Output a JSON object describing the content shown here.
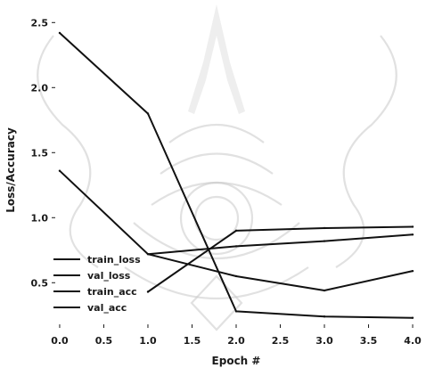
{
  "chart_data": {
    "type": "line",
    "x": [
      0,
      1,
      2,
      3,
      4
    ],
    "xlabel": "Epoch #",
    "ylabel": "Loss/Accuracy",
    "xlim": [
      -0.05,
      4.05
    ],
    "ylim": [
      0.18,
      2.55
    ],
    "xticks": [
      "0.0",
      "0.5",
      "1.0",
      "1.5",
      "2.0",
      "2.5",
      "3.0",
      "3.5",
      "4.0"
    ],
    "yticks": [
      "0.5",
      "1.0",
      "1.5",
      "2.0",
      "2.5"
    ],
    "legend_position": "lower-left",
    "grid": false,
    "series": [
      {
        "name": "train_loss",
        "values": [
          2.42,
          1.8,
          0.28,
          0.24,
          0.23
        ],
        "color": "#111111",
        "dash": "solid"
      },
      {
        "name": "val_loss",
        "values": [
          1.36,
          0.72,
          0.55,
          0.44,
          0.59
        ],
        "color": "#111111",
        "dash": "solid"
      },
      {
        "name": "train_acc",
        "values": [
          null,
          0.43,
          0.9,
          0.92,
          0.93
        ],
        "color": "#111111",
        "dash": "solid"
      },
      {
        "name": "val_acc",
        "values": [
          null,
          0.72,
          0.78,
          0.82,
          0.87
        ],
        "color": "#111111",
        "dash": "solid"
      }
    ]
  }
}
